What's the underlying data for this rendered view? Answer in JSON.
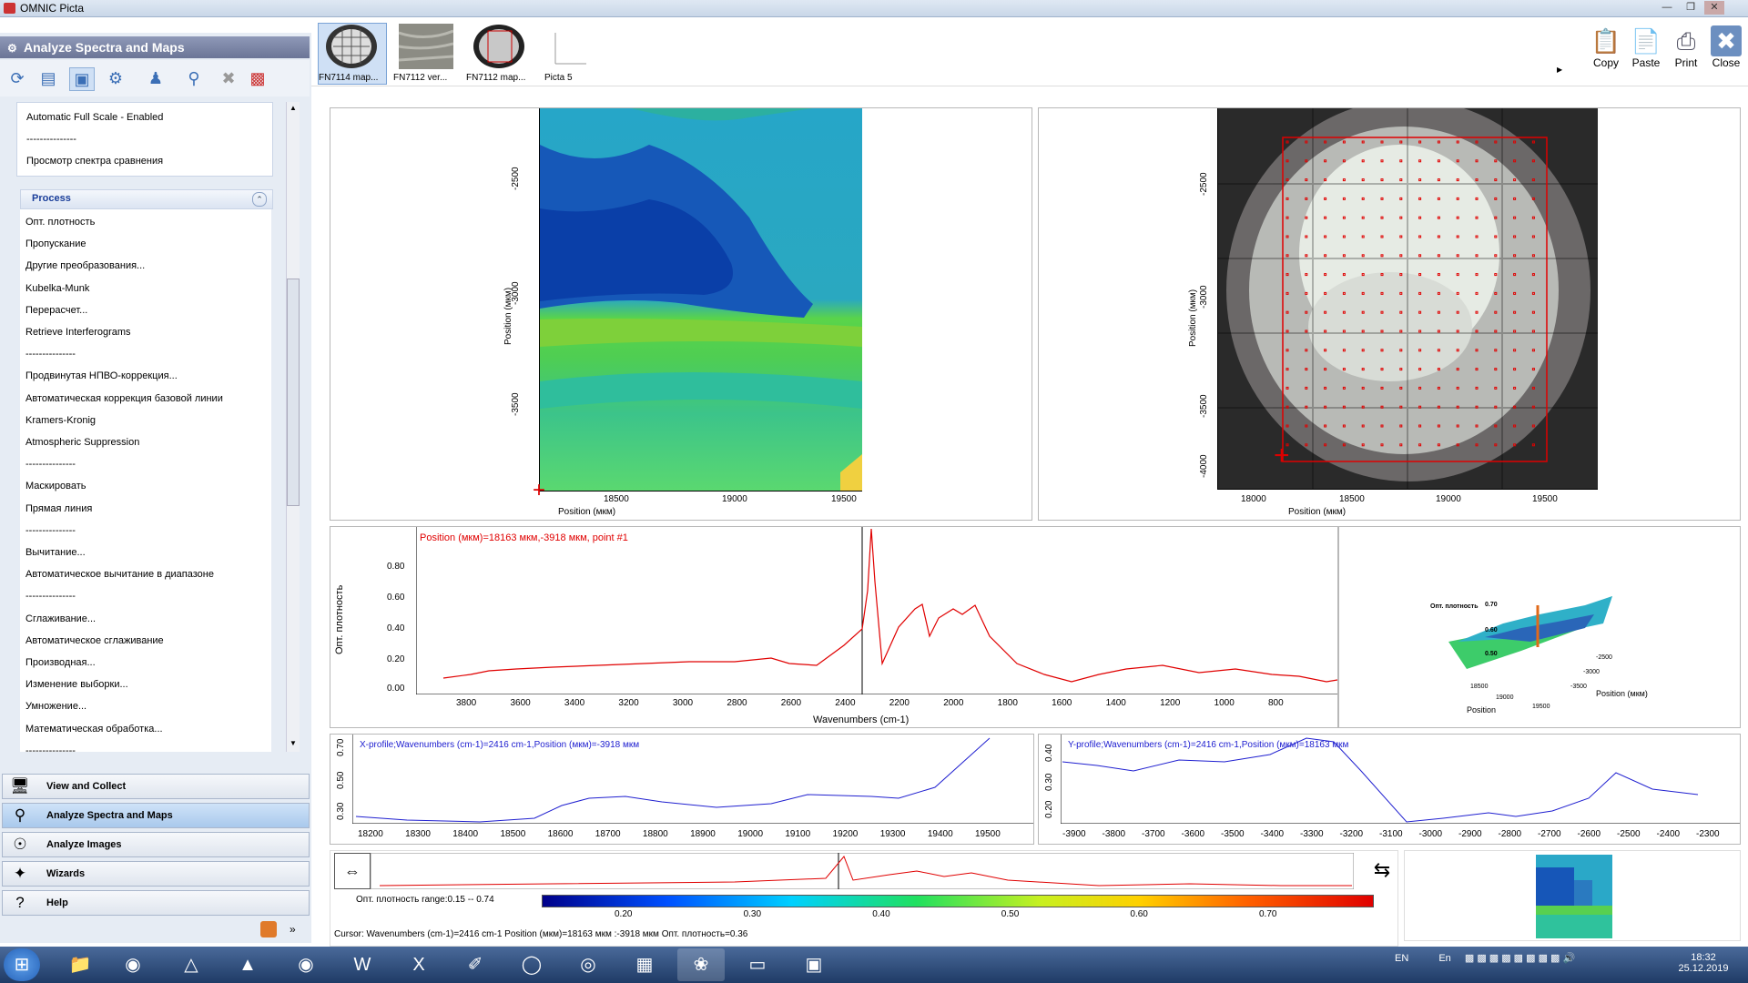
{
  "window": {
    "title": "OMNIC Picta"
  },
  "left_panel": {
    "header": "Analyze Spectra and Maps",
    "menu_top": [
      "Automatic Full Scale - Enabled",
      "---------------",
      "Просмотр спектра сравнения"
    ],
    "process_header": "Process",
    "process_items": [
      "Опт. плотность",
      "Пропускание",
      "Другие преобразования...",
      "Kubelka-Munk",
      "Перерасчет...",
      "Retrieve Interferograms",
      "---------------",
      "Продвинутая НПВО-коррекция...",
      "Автоматическая коррекция базовой линии",
      "Kramers-Kronig",
      "Atmospheric Suppression",
      "---------------",
      "Маскировать",
      "Прямая линия",
      "---------------",
      "Вычитание...",
      "Автоматическое вычитание в диапазоне",
      "---------------",
      "Сглаживание...",
      "Автоматическое сглаживание",
      "Производная...",
      "Изменение выборки...",
      "Умножение...",
      "Математическая обработка...",
      "---------------"
    ],
    "nav": [
      "View and Collect",
      "Analyze Spectra and Maps",
      "Analyze Images",
      "Wizards",
      "Help"
    ]
  },
  "thumbnails": [
    {
      "label": "FN7114 map..."
    },
    {
      "label": "FN7112 ver..."
    },
    {
      "label": "FN7112 map..."
    },
    {
      "label": "Picta 5"
    }
  ],
  "right_buttons": [
    "Copy",
    "Paste",
    "Print",
    "Close"
  ],
  "map_pane": {
    "ylabel": "Position (мкм)",
    "xlabel": "Position (мкм)",
    "yticks": [
      "-2500",
      "-3000",
      "-3500"
    ],
    "xticks": [
      "18500",
      "19000",
      "19500"
    ]
  },
  "image_pane": {
    "ylabel": "Position (мкм)",
    "xlabel": "Position (мкм)",
    "yticks": [
      "-2500",
      "-3000",
      "-3500",
      "-4000"
    ],
    "xticks": [
      "18000",
      "18500",
      "19000",
      "19500"
    ]
  },
  "spectrum_pane": {
    "title": "Position (мкм)=18163 мкм,-3918 мкм, point #1",
    "ylabel": "Опт. плотность",
    "xlabel": "Wavenumbers (cm-1)",
    "yticks": [
      "0.00",
      "0.20",
      "0.40",
      "0.60",
      "0.80"
    ],
    "xticks": [
      "3800",
      "3600",
      "3400",
      "3200",
      "3000",
      "2800",
      "2600",
      "2400",
      "2200",
      "2000",
      "1800",
      "1600",
      "1400",
      "1200",
      "1000",
      "800"
    ]
  },
  "surface_pane": {
    "zlabel": "Опт. плотность",
    "zticks": [
      "0.70",
      "0.60",
      "0.50"
    ],
    "axis1_label": "Position",
    "axis1_ticks": [
      "18500",
      "19000",
      "19500"
    ],
    "axis2_label": "Position (мкм)",
    "axis2_ticks": [
      "-2500",
      "-3000",
      "-3500"
    ]
  },
  "xprofile": {
    "title": "X-profile;Wavenumbers (cm-1)=2416 cm-1,Position (мкм)=-3918 мкм",
    "yticks": [
      "0.70",
      "0.50",
      "0.30"
    ],
    "xticks": [
      "18200",
      "18300",
      "18400",
      "18500",
      "18600",
      "18700",
      "18800",
      "18900",
      "19000",
      "19100",
      "19200",
      "19300",
      "19400",
      "19500"
    ]
  },
  "yprofile": {
    "title": "Y-profile;Wavenumbers (cm-1)=2416 cm-1,Position (мкм)=18163 мкм",
    "yticks": [
      "0.40",
      "0.30",
      "0.20"
    ],
    "xticks": [
      "-3900",
      "-3800",
      "-3700",
      "-3600",
      "-3500",
      "-3400",
      "-3300",
      "-3200",
      "-3100",
      "-3000",
      "-2900",
      "-2800",
      "-2700",
      "-2600",
      "-2500",
      "-2400",
      "-2300"
    ]
  },
  "colorbar": {
    "range_label": "Опт. плотность range:0.15 -- 0.74",
    "ticks": [
      "0.20",
      "0.30",
      "0.40",
      "0.50",
      "0.60",
      "0.70"
    ]
  },
  "status": {
    "cursor": "Cursor: Wavenumbers (cm-1)=2416 cm-1  Position (мкм)=18163 мкм :-3918 мкм  Опт. плотность=0.36"
  },
  "taskbar": {
    "lang": "EN",
    "lang2": "En",
    "time": "18:32",
    "date": "25.12.2019"
  },
  "colors": {
    "spectrum": "#e00000",
    "profile": "#2020d0",
    "accent": "#1a3e9a"
  }
}
